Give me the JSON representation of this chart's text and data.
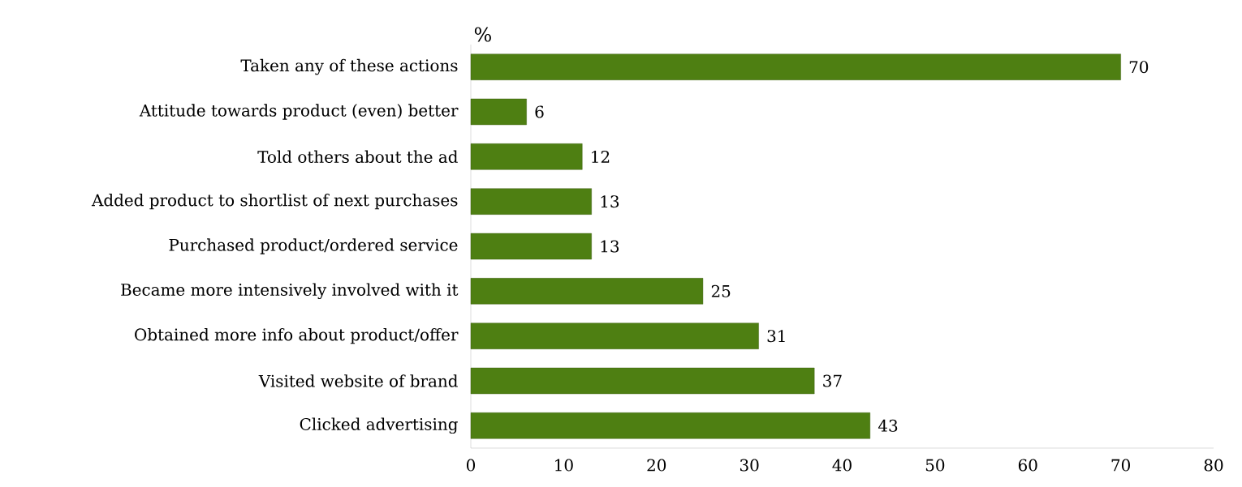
{
  "chart_data": {
    "type": "bar",
    "orientation": "horizontal",
    "xlabel": "%",
    "categories": [
      "Taken any of these actions",
      "Attitude towards product (even) better",
      "Told others about the ad",
      "Added product to shortlist of next purchases",
      "Purchased product/ordered service",
      "Became more intensively involved with it",
      "Obtained more info about product/offer",
      "Visited website of brand",
      "Clicked advertising"
    ],
    "values": [
      70,
      6,
      12,
      13,
      13,
      25,
      31,
      37,
      43
    ],
    "color": "#4e7f12",
    "xlim": [
      0,
      80
    ],
    "xticks": [
      0,
      10,
      20,
      30,
      40,
      50,
      60,
      70,
      80
    ],
    "data_labels": true,
    "grid": false
  }
}
